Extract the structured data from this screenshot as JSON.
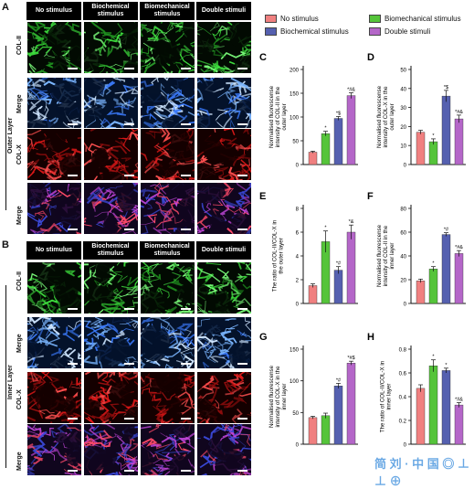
{
  "panelA": {
    "letter": "A",
    "columns": [
      "No stimulus",
      "Biochemical stimulus",
      "Biomechanical stimulus",
      "Double stimuli"
    ],
    "rows": [
      "COL-II",
      "Merge",
      "COL-X",
      "Merge"
    ],
    "side_label": "Outer Layer",
    "scale": "50um"
  },
  "panelB": {
    "letter": "B",
    "columns": [
      "No stimulus",
      "Biochemical stimulus",
      "Biomechanical stimulus",
      "Double stimuli"
    ],
    "rows": [
      "COL-II",
      "Merge",
      "COL-X",
      "Merge"
    ],
    "side_label": "Inner Layer",
    "scale": "50um"
  },
  "legend": [
    {
      "label": "No stimulus",
      "color": "#f08080"
    },
    {
      "label": "Biochemical stimulus",
      "color": "#55c43a"
    },
    {
      "label": "Biomechanical stimulus",
      "color": "#5560b0"
    },
    {
      "label": "Double stimuli",
      "color": "#b466c8"
    }
  ],
  "colors": {
    "no": "#f08080",
    "bio": "#55c43a",
    "mech": "#5560b0",
    "double": "#b466c8"
  },
  "chart_data": [
    {
      "id": "C",
      "type": "bar",
      "ylabel": "Normalised fluorescense intensity of COL-II in the outer layer",
      "values": [
        26,
        65,
        97,
        145
      ],
      "errors": [
        2,
        5,
        4,
        6
      ],
      "ylim": [
        0,
        200
      ],
      "ticks": [
        0,
        50,
        100,
        150,
        200
      ],
      "annotations": [
        "",
        "*",
        "*$",
        "*#&"
      ]
    },
    {
      "id": "D",
      "type": "bar",
      "ylabel": "Normalised fluorescense intensity of COL-X in the outer layer",
      "values": [
        17,
        12,
        36,
        24
      ],
      "errors": [
        1,
        1.5,
        3,
        2
      ],
      "ylim": [
        0,
        50
      ],
      "ticks": [
        0,
        10,
        20,
        30,
        40,
        50
      ],
      "annotations": [
        "",
        "*",
        "*$",
        "*#&"
      ]
    },
    {
      "id": "E",
      "type": "bar",
      "ylabel": "The ratio of COL-II/COL-X in the outer layer",
      "values": [
        1.5,
        5.2,
        2.8,
        6.0
      ],
      "errors": [
        0.15,
        0.9,
        0.3,
        0.6
      ],
      "ylim": [
        0,
        8
      ],
      "ticks": [
        0,
        2,
        4,
        6,
        8
      ],
      "annotations": [
        "",
        "*",
        "*#",
        "*&"
      ]
    },
    {
      "id": "F",
      "type": "bar",
      "ylabel": "Normalised fluorescense intensity of COL-II in the inner layer",
      "values": [
        19,
        29,
        58,
        42
      ],
      "errors": [
        1.5,
        2,
        1.5,
        2.5
      ],
      "ylim": [
        0,
        80
      ],
      "ticks": [
        0,
        20,
        40,
        60,
        80
      ],
      "annotations": [
        "",
        "*",
        "*#",
        "*#&"
      ]
    },
    {
      "id": "G",
      "type": "bar",
      "ylabel": "Normalised fluorescense intensity of COL-X in the inner layer",
      "values": [
        42,
        45,
        92,
        128
      ],
      "errors": [
        2,
        4,
        4,
        3
      ],
      "ylim": [
        0,
        150
      ],
      "ticks": [
        0,
        50,
        100,
        150
      ],
      "annotations": [
        "",
        "",
        "*#",
        "*#$"
      ]
    },
    {
      "id": "H",
      "type": "bar",
      "ylabel": "The ratio of COL-II/COL-X in inner layer",
      "values": [
        0.47,
        0.66,
        0.62,
        0.33
      ],
      "errors": [
        0.03,
        0.05,
        0.02,
        0.02
      ],
      "ylim": [
        0,
        0.8
      ],
      "ticks": [
        0,
        0.2,
        0.4,
        0.6,
        0.8
      ],
      "annotations": [
        "",
        "*",
        "*",
        "*#&"
      ]
    }
  ]
}
